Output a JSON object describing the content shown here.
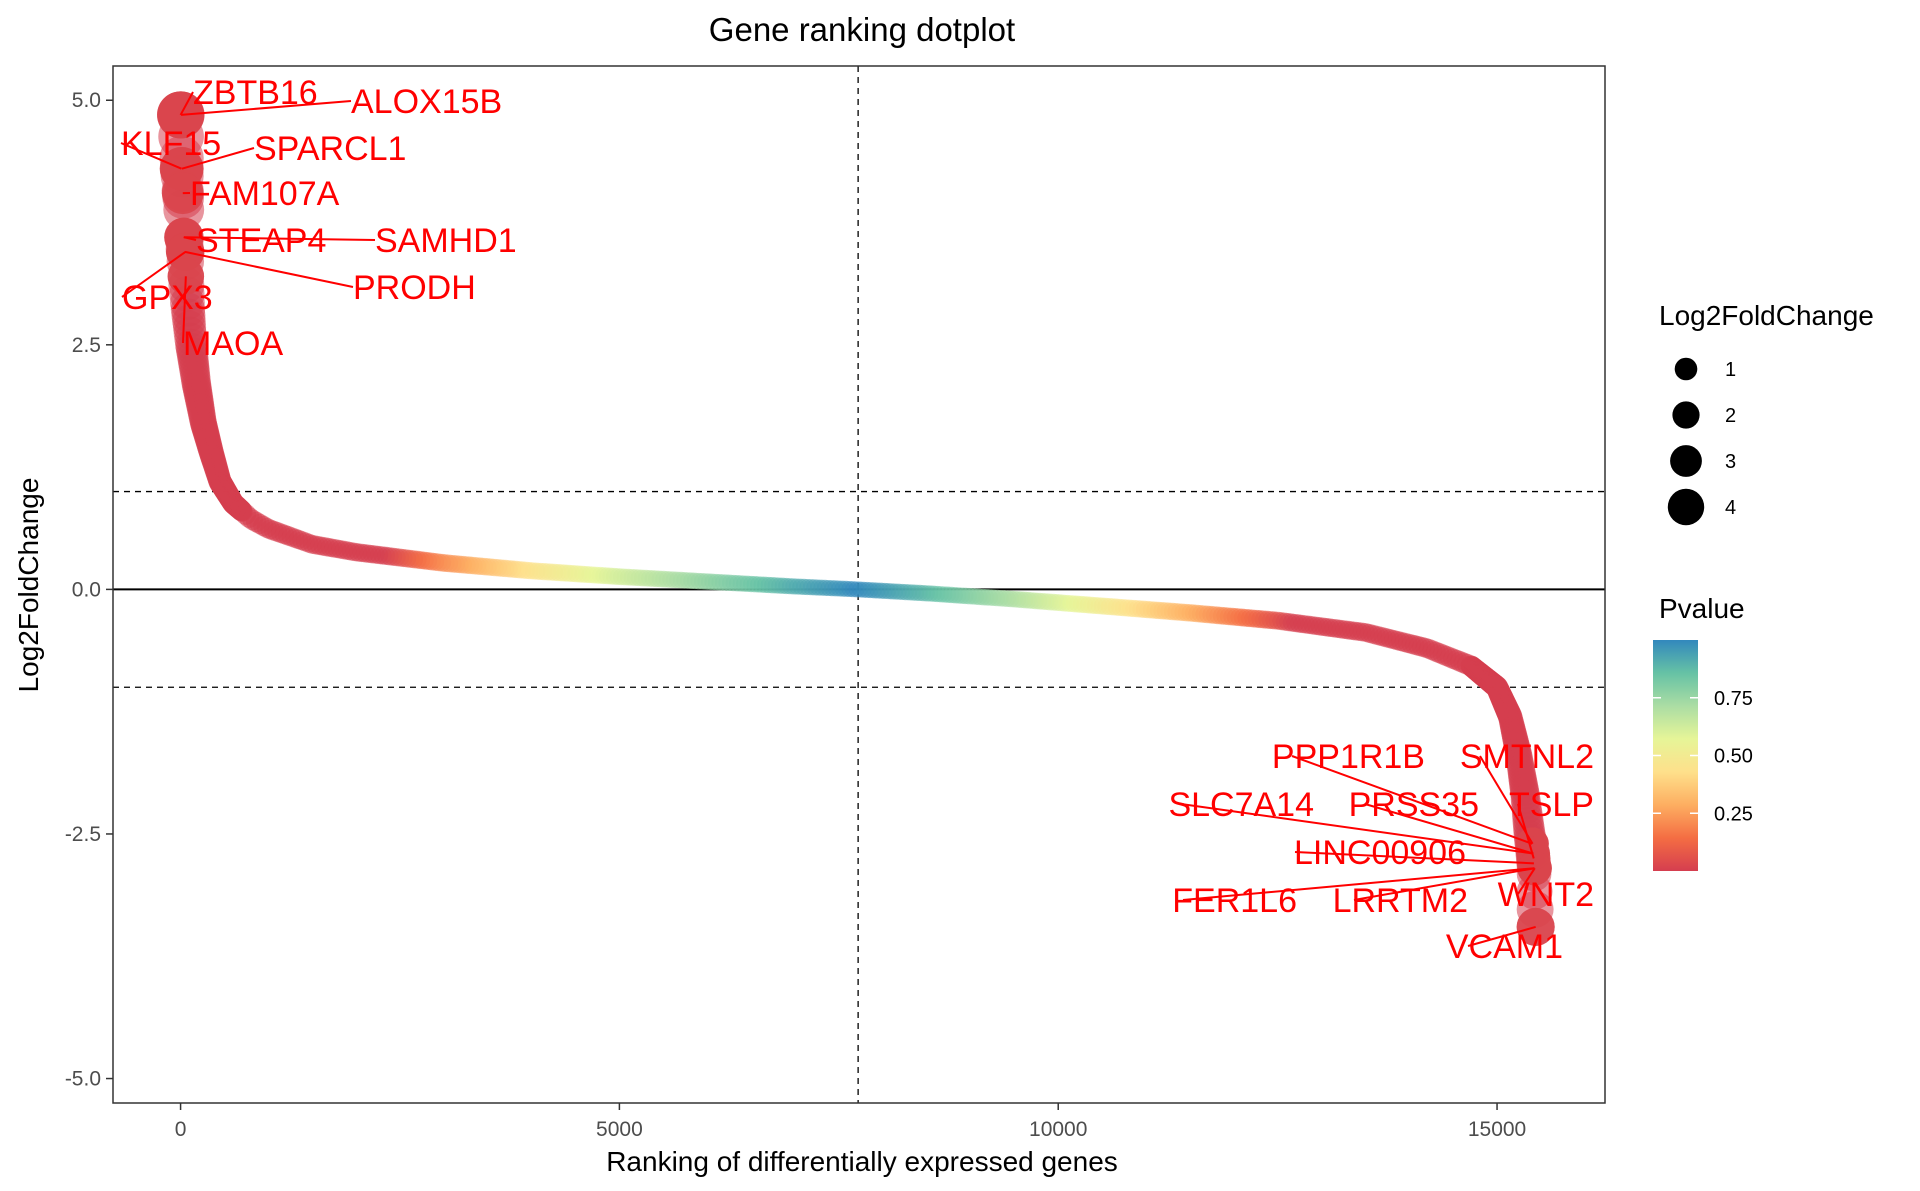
{
  "chart_data": {
    "type": "scatter",
    "title": "Gene ranking dotplot",
    "xlabel": "Ranking of differentially expressed genes",
    "ylabel": "Log2FoldChange",
    "xlim": [
      -770,
      16230
    ],
    "ylim": [
      -5.25,
      5.35
    ],
    "x_ticks": [
      "0",
      "5000",
      "10000",
      "15000"
    ],
    "x_tick_values": [
      0,
      5000,
      10000,
      15000
    ],
    "y_ticks": [
      "-5.0",
      "-2.5",
      "0.0",
      "2.5",
      "5.0"
    ],
    "y_tick_values": [
      -5,
      -2.5,
      0,
      2.5,
      5
    ],
    "grid": false,
    "n_genes": 15440,
    "reference_lines": {
      "horizontal_solid": 0,
      "horizontal_dashed": [
        1,
        -1
      ],
      "vertical_dashed": 7720
    },
    "curve_points": [
      [
        0,
        4.85
      ],
      [
        15,
        4.3
      ],
      [
        25,
        4.05
      ],
      [
        35,
        3.95
      ],
      [
        40,
        3.6
      ],
      [
        50,
        3.45
      ],
      [
        60,
        3.2
      ],
      [
        80,
        2.9
      ],
      [
        120,
        2.5
      ],
      [
        180,
        2.1
      ],
      [
        260,
        1.7
      ],
      [
        350,
        1.4
      ],
      [
        450,
        1.1
      ],
      [
        600,
        0.88
      ],
      [
        800,
        0.72
      ],
      [
        1000,
        0.62
      ],
      [
        1500,
        0.46
      ],
      [
        2000,
        0.38
      ],
      [
        3000,
        0.27
      ],
      [
        4000,
        0.19
      ],
      [
        5000,
        0.13
      ],
      [
        6000,
        0.08
      ],
      [
        7000,
        0.03
      ],
      [
        7720,
        0.0
      ],
      [
        8500,
        -0.04
      ],
      [
        9500,
        -0.1
      ],
      [
        10500,
        -0.17
      ],
      [
        11500,
        -0.24
      ],
      [
        12500,
        -0.32
      ],
      [
        13500,
        -0.44
      ],
      [
        14200,
        -0.6
      ],
      [
        14700,
        -0.78
      ],
      [
        15000,
        -1.0
      ],
      [
        15150,
        -1.3
      ],
      [
        15250,
        -1.7
      ],
      [
        15320,
        -2.1
      ],
      [
        15370,
        -2.5
      ],
      [
        15400,
        -2.7
      ],
      [
        15420,
        -2.85
      ],
      [
        15440,
        -3.45
      ]
    ],
    "highlighted_genes": [
      {
        "gene": "ZBTB16",
        "x": 0,
        "y": 4.85
      },
      {
        "gene": "ALOX15B",
        "x": 5,
        "y": 4.85
      },
      {
        "gene": "KLF15",
        "x": 10,
        "y": 4.3
      },
      {
        "gene": "SPARCL1",
        "x": 15,
        "y": 4.3
      },
      {
        "gene": "FAM107A",
        "x": 25,
        "y": 4.05
      },
      {
        "gene": "STEAP4",
        "x": 35,
        "y": 3.6
      },
      {
        "gene": "SAMHD1",
        "x": 40,
        "y": 3.6
      },
      {
        "gene": "PRODH",
        "x": 50,
        "y": 3.45
      },
      {
        "gene": "GPX3",
        "x": 55,
        "y": 3.45
      },
      {
        "gene": "MAOA",
        "x": 60,
        "y": 3.2
      },
      {
        "gene": "PPP1R1B",
        "x": 15400,
        "y": -2.6
      },
      {
        "gene": "SMTNL2",
        "x": 15405,
        "y": -2.6
      },
      {
        "gene": "SLC7A14",
        "x": 15410,
        "y": -2.7
      },
      {
        "gene": "PRSS35",
        "x": 15415,
        "y": -2.7
      },
      {
        "gene": "TSLP",
        "x": 15418,
        "y": -2.75
      },
      {
        "gene": "LINC00906",
        "x": 15420,
        "y": -2.8
      },
      {
        "gene": "FER1L6",
        "x": 15425,
        "y": -2.85
      },
      {
        "gene": "LRRTM2",
        "x": 15428,
        "y": -2.85
      },
      {
        "gene": "WNT2",
        "x": 15430,
        "y": -2.85
      },
      {
        "gene": "VCAM1",
        "x": 15440,
        "y": -3.45
      }
    ],
    "size_legend": {
      "title": "Log2FoldChange",
      "labels": [
        "1",
        "2",
        "3",
        "4"
      ]
    },
    "color_legend": {
      "title": "Pvalue",
      "labels": [
        "0.75",
        "0.50",
        "0.25"
      ],
      "label_values": [
        0.75,
        0.5,
        0.25
      ],
      "range": [
        0.0,
        1.0
      ],
      "colors": [
        "#d53e4f",
        "#f46d43",
        "#fdae61",
        "#fee08b",
        "#e6f598",
        "#abdda4",
        "#66c2a5",
        "#3288bd"
      ]
    }
  }
}
